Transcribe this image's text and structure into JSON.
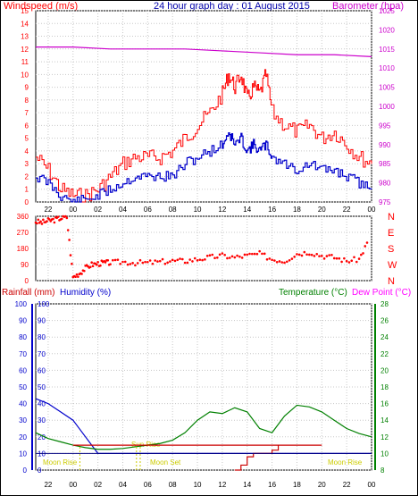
{
  "header": {
    "wind_label": "Windspeed (m/s)",
    "title": "24 hour graph day : 01 August 2015",
    "baro_label": "Barometer (hpa)"
  },
  "colors": {
    "wind": "#ff0000",
    "gust": "#ff0000",
    "avg": "#0000cc",
    "baro": "#cc00cc",
    "dir": "#ff0000",
    "rain": "#cc0000",
    "humidity": "#0000cc",
    "temp": "#008000",
    "dew": "#ff00ff",
    "moon": "#cccc00",
    "grid": "#c8c8c8",
    "axis_blue": "#0000cc",
    "axis_green": "#008000"
  },
  "x_ticks": [
    "22",
    "00",
    "02",
    "04",
    "06",
    "08",
    "10",
    "12",
    "14",
    "16",
    "18",
    "20",
    "22",
    "00"
  ],
  "dir_labels": [
    "N",
    "W",
    "S",
    "E",
    "N"
  ],
  "bottom_header": {
    "rain_label": "Rainfall (mm)",
    "hum_label": "Humidity (%)",
    "temp_label": "Temperature (°C)",
    "dew_label": "Dew Point (°C)"
  },
  "annotations": {
    "moon_rise_1": "Moon Rise",
    "sun_rise": "Sun Rise",
    "moon_set": "Moon Set",
    "moon_rise_2": "Moon Rise"
  },
  "chart_data": [
    {
      "type": "line",
      "xlabel": "",
      "series": [
        {
          "name": "Windspeed (m/s)",
          "x": [
            21,
            22,
            23,
            0,
            1,
            2,
            3,
            4,
            5,
            6,
            7,
            8,
            9,
            10,
            11,
            12,
            12.5,
            13,
            13.5,
            14,
            14.5,
            15,
            15.5,
            16,
            17,
            18,
            19,
            20,
            21,
            22,
            23,
            24
          ],
          "values": [
            3.5,
            2.5,
            1,
            0.5,
            0.5,
            1,
            2,
            3,
            3.5,
            3.5,
            3.5,
            4,
            5,
            6,
            7,
            8.5,
            10,
            9,
            10,
            8,
            9,
            8.5,
            10,
            7,
            6,
            5.5,
            6,
            5,
            5.5,
            4.5,
            3.5,
            3
          ]
        },
        {
          "name": "",
          "x": [
            21,
            22,
            23,
            0,
            1,
            2,
            3,
            4,
            5,
            6,
            7,
            8,
            9,
            10,
            11,
            12,
            12.5,
            13,
            13.5,
            14,
            14.5,
            15,
            15.5,
            16,
            17,
            18,
            19,
            20,
            21,
            22,
            23,
            24
          ],
          "values": [
            2,
            1.5,
            0.5,
            0,
            0.2,
            0.5,
            1,
            1.5,
            2,
            2,
            2,
            2,
            3,
            3.5,
            4,
            4.5,
            5.5,
            4.5,
            5,
            4,
            4.5,
            4,
            4.5,
            3.5,
            3,
            2.5,
            3,
            2.5,
            2.5,
            2,
            1.5,
            1
          ]
        }
      ],
      "y_left": {
        "label": "Windspeed (m/s)",
        "min": 0,
        "max": 15,
        "ticks": [
          0,
          1,
          2,
          3,
          4,
          5,
          6,
          7,
          8,
          9,
          10,
          11,
          12,
          13,
          14,
          15
        ]
      },
      "y_right": {
        "label": "Barometer (hpa)",
        "min": 975,
        "max": 1025,
        "ticks": [
          975,
          980,
          985,
          990,
          995,
          1000,
          1005,
          1010,
          1015,
          1020,
          1025
        ]
      },
      "barometer": {
        "x": [
          21,
          0,
          3,
          6,
          9,
          12,
          15,
          18,
          21,
          24
        ],
        "values": [
          1015.5,
          1015.5,
          1015,
          1015,
          1015,
          1014.5,
          1014,
          1013.5,
          1013.5,
          1013
        ]
      }
    },
    {
      "type": "scatter",
      "xlabel": "",
      "ylabel": "",
      "ylim": [
        0,
        360
      ],
      "ticks": [
        0,
        90,
        180,
        270,
        360
      ],
      "series": [
        {
          "name": "",
          "x": [
            21,
            21.5,
            22,
            22.5,
            23,
            23.5,
            0,
            0.5,
            1,
            1.5,
            2,
            2.5,
            3,
            4,
            5,
            6,
            7,
            8,
            9,
            10,
            11,
            12,
            13,
            14,
            15,
            16,
            17,
            18,
            19,
            20,
            21,
            22,
            23,
            23.8
          ],
          "values": [
            330,
            325,
            335,
            340,
            350,
            355,
            20,
            40,
            70,
            90,
            95,
            100,
            100,
            105,
            100,
            100,
            105,
            110,
            110,
            120,
            130,
            140,
            130,
            140,
            150,
            120,
            110,
            150,
            160,
            140,
            130,
            110,
            120,
            230
          ]
        }
      ]
    },
    {
      "type": "line",
      "xlabel": "",
      "series": [
        {
          "name": "Humidity (%)",
          "x": [
            21,
            22,
            23,
            0,
            1,
            2,
            3,
            6,
            9,
            12,
            15,
            18,
            21,
            24
          ],
          "values": [
            43,
            40,
            35,
            30,
            20,
            10,
            10,
            10,
            10,
            10,
            10,
            10,
            10,
            10
          ]
        },
        {
          "name": "Temperature (°C)",
          "x": [
            21,
            22,
            23,
            0,
            1,
            2,
            3,
            4,
            5,
            6,
            7,
            8,
            9,
            10,
            11,
            12,
            13,
            14,
            15,
            16,
            17,
            18,
            19,
            20,
            21,
            22,
            23,
            24
          ],
          "values": [
            12.5,
            11.8,
            11.4,
            11,
            10.7,
            10.5,
            10.5,
            10.6,
            10.8,
            11,
            11.2,
            11.6,
            12.5,
            14,
            15,
            14.8,
            15.5,
            15,
            13,
            12.5,
            14.5,
            15.8,
            15.6,
            15,
            14,
            13,
            12.4,
            12
          ]
        },
        {
          "name": "",
          "x": [
            13,
            13.5,
            14,
            14.5,
            15,
            15.5,
            16,
            16.5,
            17,
            20,
            24
          ],
          "values": [
            0,
            0.3,
            0.8,
            1,
            1,
            1,
            1.2,
            1.5,
            1.5,
            1.5,
            1.5
          ]
        }
      ],
      "y_left": {
        "label": "Rainfall (mm) / Humidity (%)",
        "min": 0,
        "max": 100,
        "ticks": [
          0,
          10,
          20,
          30,
          40,
          50,
          60,
          70,
          80,
          90,
          100
        ]
      },
      "y_right": {
        "label": "Temperature (°C)",
        "min": 8,
        "max": 28,
        "ticks": [
          8,
          10,
          12,
          14,
          16,
          18,
          20,
          22,
          24,
          26,
          28
        ]
      }
    }
  ]
}
